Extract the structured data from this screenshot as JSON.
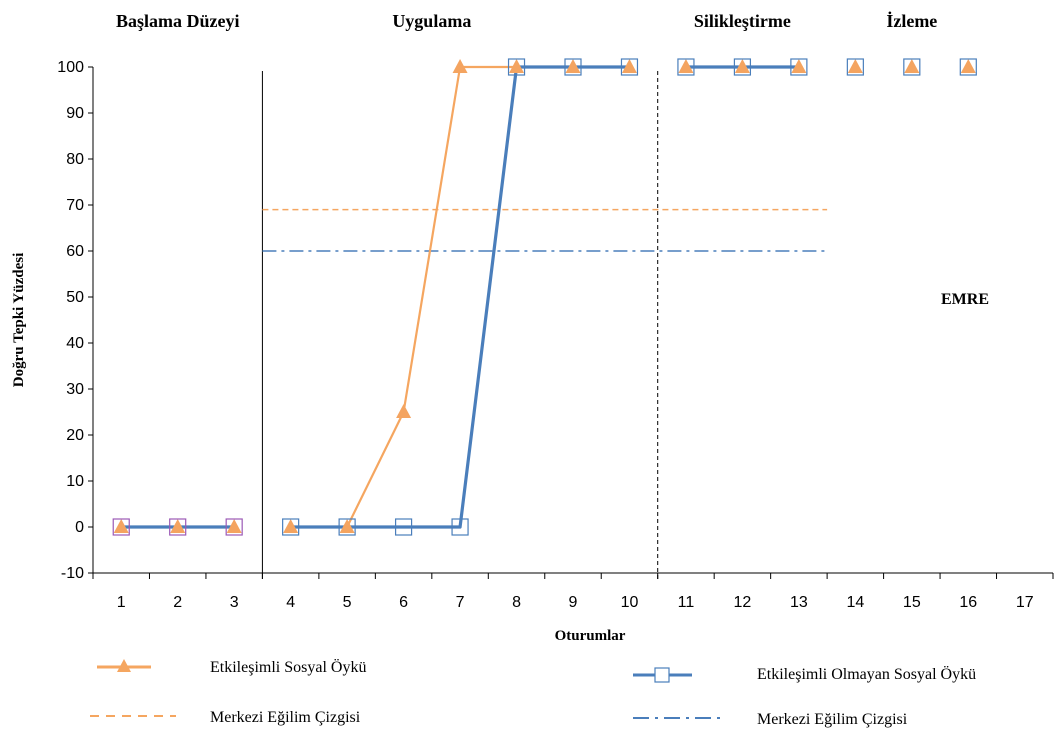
{
  "chart_data": {
    "type": "line",
    "title": "",
    "xlabel": "Oturumlar",
    "ylabel": "Doğru Tepki Yüzdesi",
    "xlim": [
      0.5,
      17.5
    ],
    "ylim": [
      -10,
      100
    ],
    "y_ticks": [
      -10,
      0,
      10,
      20,
      30,
      40,
      50,
      60,
      70,
      80,
      90,
      100
    ],
    "x_ticks": [
      1,
      2,
      3,
      4,
      5,
      6,
      7,
      8,
      9,
      10,
      11,
      12,
      13,
      14,
      15,
      16,
      17
    ],
    "grid": false,
    "phases": [
      {
        "label": "Başlama Düzeyi",
        "center_x": 2
      },
      {
        "label": "Uygulama",
        "center_x": 6.5
      },
      {
        "label": "Silikleştirme",
        "center_x": 12
      },
      {
        "label": "İzleme",
        "center_x": 15
      }
    ],
    "phase_dividers": [
      {
        "x": 3.5,
        "style": "solid"
      },
      {
        "x": 10.5,
        "style": "dashed"
      }
    ],
    "annotation": {
      "text": "EMRE",
      "x": 15.5,
      "y": 50
    },
    "series": [
      {
        "name": "Etkileşimli Sosyal Öykü",
        "color": "#f4a460",
        "line_color": "#f5a660",
        "marker": "triangle",
        "segments": [
          {
            "x": [
              1,
              2,
              3
            ],
            "y": [
              0,
              0,
              0
            ],
            "line_color": "#e58a2e"
          },
          {
            "x": [
              4,
              5,
              6,
              7,
              8,
              9,
              10
            ],
            "y": [
              0,
              0,
              25,
              100,
              100,
              100,
              100
            ],
            "line_color": "#f5a660"
          },
          {
            "x": [
              11,
              12,
              13
            ],
            "y": [
              100,
              100,
              100
            ],
            "line_color": "#d87a3a"
          },
          {
            "x": [
              14
            ],
            "y": [
              100
            ]
          },
          {
            "x": [
              15
            ],
            "y": [
              100
            ]
          },
          {
            "x": [
              16
            ],
            "y": [
              100
            ]
          }
        ]
      },
      {
        "name": "Etkileşimli Olmayan Sosyal Öykü",
        "color": "#4a7ebb",
        "line_color": "#4a7ebb",
        "marker": "square",
        "segments": [
          {
            "x": [
              1,
              2,
              3
            ],
            "y": [
              0,
              0,
              0
            ],
            "marker_color": "#9b59b6"
          },
          {
            "x": [
              4,
              5,
              6,
              7,
              8,
              9,
              10
            ],
            "y": [
              0,
              0,
              0,
              0,
              100,
              100,
              100
            ]
          },
          {
            "x": [
              11,
              12,
              13
            ],
            "y": [
              100,
              100,
              100
            ]
          },
          {
            "x": [
              14
            ],
            "y": [
              100
            ]
          },
          {
            "x": [
              15
            ],
            "y": [
              100
            ]
          },
          {
            "x": [
              16
            ],
            "y": [
              100
            ]
          }
        ]
      }
    ],
    "reference_lines": [
      {
        "name": "Merkezi Eğilim Çizgisi",
        "series": "Etkileşimli Sosyal Öykü",
        "y": 69,
        "x_start": 3.5,
        "x_end": 13.5,
        "style": "dashed",
        "color": "#f5a660"
      },
      {
        "name": "Merkezi Eğilim Çizgisi",
        "series": "Etkileşimli Olmayan Sosyal Öykü",
        "y": 60,
        "x_start": 3.5,
        "x_end": 13.5,
        "style": "dashdot",
        "color": "#4a7ebb"
      }
    ],
    "legend": {
      "placement": "bottom",
      "items": [
        {
          "label": "Etkileşimli Sosyal Öykü",
          "kind": "orange-solid-triangle"
        },
        {
          "label": "Etkileşimli Olmayan Sosyal Öykü",
          "kind": "blue-solid-square"
        },
        {
          "label": "Merkezi Eğilim Çizgisi",
          "kind": "orange-dashed"
        },
        {
          "label": "Merkezi Eğilim Çizgisi",
          "kind": "blue-dashdot"
        }
      ]
    }
  }
}
